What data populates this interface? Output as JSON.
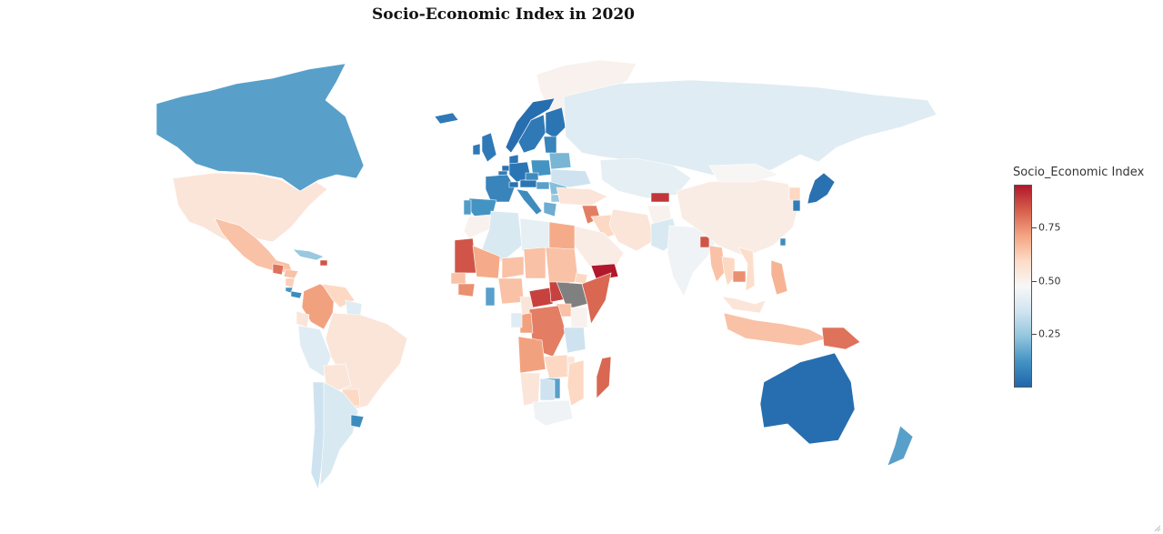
{
  "title": "Socio-Economic Index in 2020",
  "colorbar": {
    "title": "Socio_Economic Index",
    "ticks": [
      {
        "label": "0.75",
        "value": 0.75
      },
      {
        "label": "0.50",
        "value": 0.5
      },
      {
        "label": "0.25",
        "value": 0.25
      }
    ],
    "min": 0.0,
    "max": 0.95,
    "colors": [
      "#2166ac",
      "#4393c3",
      "#92c5de",
      "#d1e5f0",
      "#f7f7f7",
      "#fddbc7",
      "#f4a582",
      "#d6604d",
      "#b2182b"
    ]
  },
  "chart_data": {
    "type": "choropleth",
    "title": "Socio-Economic Index in 2020",
    "colorbar_title": "Socio_Economic Index",
    "color_range": [
      0.0,
      0.95
    ],
    "no_data_color": "#808080",
    "regions": [
      {
        "name": "Canada",
        "value": 0.15
      },
      {
        "name": "United States",
        "value": 0.55
      },
      {
        "name": "Greenland",
        "value": 0.5
      },
      {
        "name": "Mexico",
        "value": 0.65
      },
      {
        "name": "Guatemala",
        "value": 0.8
      },
      {
        "name": "Honduras",
        "value": 0.65
      },
      {
        "name": "Nicaragua",
        "value": 0.62
      },
      {
        "name": "Costa Rica",
        "value": 0.12
      },
      {
        "name": "Panama",
        "value": 0.1
      },
      {
        "name": "Cuba",
        "value": 0.25
      },
      {
        "name": "Haiti",
        "value": 0.85
      },
      {
        "name": "Colombia",
        "value": 0.72
      },
      {
        "name": "Venezuela",
        "value": 0.6
      },
      {
        "name": "Guyana",
        "value": 0.4
      },
      {
        "name": "Ecuador",
        "value": 0.55
      },
      {
        "name": "Peru",
        "value": 0.4
      },
      {
        "name": "Brazil",
        "value": 0.55
      },
      {
        "name": "Bolivia",
        "value": 0.55
      },
      {
        "name": "Paraguay",
        "value": 0.6
      },
      {
        "name": "Chile",
        "value": 0.35
      },
      {
        "name": "Argentina",
        "value": 0.38
      },
      {
        "name": "Uruguay",
        "value": 0.1
      },
      {
        "name": "Iceland",
        "value": 0.05
      },
      {
        "name": "United Kingdom",
        "value": 0.05
      },
      {
        "name": "Ireland",
        "value": 0.05
      },
      {
        "name": "Norway",
        "value": 0.02
      },
      {
        "name": "Sweden",
        "value": 0.05
      },
      {
        "name": "Finland",
        "value": 0.04
      },
      {
        "name": "Denmark",
        "value": 0.04
      },
      {
        "name": "Netherlands",
        "value": 0.03
      },
      {
        "name": "Belgium",
        "value": 0.06
      },
      {
        "name": "France",
        "value": 0.08
      },
      {
        "name": "Spain",
        "value": 0.12
      },
      {
        "name": "Portugal",
        "value": 0.14
      },
      {
        "name": "Germany",
        "value": 0.04
      },
      {
        "name": "Switzerland",
        "value": 0.03
      },
      {
        "name": "Austria",
        "value": 0.04
      },
      {
        "name": "Italy",
        "value": 0.1
      },
      {
        "name": "Poland",
        "value": 0.12
      },
      {
        "name": "Czechia",
        "value": 0.1
      },
      {
        "name": "Hungary",
        "value": 0.15
      },
      {
        "name": "Romania",
        "value": 0.22
      },
      {
        "name": "Bulgaria",
        "value": 0.25
      },
      {
        "name": "Greece",
        "value": 0.18
      },
      {
        "name": "Belarus",
        "value": 0.2
      },
      {
        "name": "Ukraine",
        "value": 0.35
      },
      {
        "name": "Baltic States",
        "value": 0.08
      },
      {
        "name": "Russia",
        "value": 0.4
      },
      {
        "name": "Kazakhstan",
        "value": 0.42
      },
      {
        "name": "Turkey",
        "value": 0.55
      },
      {
        "name": "Syria",
        "value": 0.78
      },
      {
        "name": "Iraq",
        "value": 0.6
      },
      {
        "name": "Iran",
        "value": 0.55
      },
      {
        "name": "Saudi Arabia",
        "value": 0.52
      },
      {
        "name": "Yemen",
        "value": 0.95
      },
      {
        "name": "Afghanistan",
        "value": 0.5
      },
      {
        "name": "Tajikistan",
        "value": 0.9
      },
      {
        "name": "Pakistan",
        "value": 0.38
      },
      {
        "name": "India",
        "value": 0.45
      },
      {
        "name": "Bangladesh",
        "value": 0.85
      },
      {
        "name": "China",
        "value": 0.52
      },
      {
        "name": "Mongolia",
        "value": 0.48
      },
      {
        "name": "Japan",
        "value": 0.03
      },
      {
        "name": "South Korea",
        "value": 0.06
      },
      {
        "name": "North Korea",
        "value": 0.6
      },
      {
        "name": "Taiwan",
        "value": 0.1
      },
      {
        "name": "Myanmar",
        "value": 0.65
      },
      {
        "name": "Thailand",
        "value": 0.6
      },
      {
        "name": "Cambodia",
        "value": 0.75
      },
      {
        "name": "Vietnam",
        "value": 0.58
      },
      {
        "name": "Philippines",
        "value": 0.68
      },
      {
        "name": "Malaysia",
        "value": 0.55
      },
      {
        "name": "Indonesia",
        "value": 0.65
      },
      {
        "name": "Papua New Guinea",
        "value": 0.8
      },
      {
        "name": "Australia",
        "value": 0.02
      },
      {
        "name": "New Zealand",
        "value": 0.15
      },
      {
        "name": "Morocco",
        "value": 0.5
      },
      {
        "name": "Algeria",
        "value": 0.38
      },
      {
        "name": "Libya",
        "value": 0.42
      },
      {
        "name": "Egypt",
        "value": 0.7
      },
      {
        "name": "Mauritania",
        "value": 0.85
      },
      {
        "name": "Mali",
        "value": 0.7
      },
      {
        "name": "Niger",
        "value": 0.65
      },
      {
        "name": "Chad",
        "value": 0.65
      },
      {
        "name": "Sudan",
        "value": 0.65
      },
      {
        "name": "Senegal",
        "value": 0.65
      },
      {
        "name": "Guinea",
        "value": 0.75
      },
      {
        "name": "Ghana",
        "value": 0.15
      },
      {
        "name": "Nigeria",
        "value": 0.65
      },
      {
        "name": "Cameroon",
        "value": 0.55
      },
      {
        "name": "Central African Republic",
        "value": 0.88
      },
      {
        "name": "South Sudan",
        "value": 0.88
      },
      {
        "name": "Ethiopia",
        "value": null
      },
      {
        "name": "Eritrea",
        "value": 0.6
      },
      {
        "name": "Somalia",
        "value": 0.82
      },
      {
        "name": "Kenya",
        "value": 0.5
      },
      {
        "name": "Uganda",
        "value": 0.65
      },
      {
        "name": "DR Congo",
        "value": 0.78
      },
      {
        "name": "Congo",
        "value": 0.72
      },
      {
        "name": "Gabon",
        "value": 0.4
      },
      {
        "name": "Tanzania",
        "value": 0.35
      },
      {
        "name": "Angola",
        "value": 0.72
      },
      {
        "name": "Zambia",
        "value": 0.6
      },
      {
        "name": "Malawi",
        "value": 0.55
      },
      {
        "name": "Mozambique",
        "value": 0.6
      },
      {
        "name": "Zimbabwe",
        "value": 0.15
      },
      {
        "name": "Namibia",
        "value": 0.55
      },
      {
        "name": "Botswana",
        "value": 0.35
      },
      {
        "name": "South Africa",
        "value": 0.45
      },
      {
        "name": "Madagascar",
        "value": 0.82
      }
    ]
  }
}
